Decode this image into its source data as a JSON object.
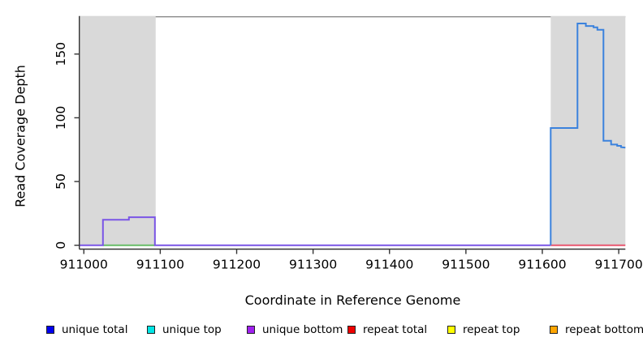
{
  "figure": {
    "xlabel": "Coordinate in Reference Genome",
    "ylabel": "Read Coverage Depth"
  },
  "chart_data": {
    "type": "line",
    "title": "",
    "xlabel": "Coordinate in Reference Genome",
    "ylabel": "Read Coverage Depth",
    "xlim": [
      910994.4,
      911708.7
    ],
    "ylim": [
      -3.05,
      179.25
    ],
    "x_ticks": [
      911000,
      911100,
      911200,
      911300,
      911400,
      911500,
      911600,
      911700
    ],
    "y_ticks": [
      0,
      50,
      100,
      150
    ],
    "grid": false,
    "legend_position": "bottom",
    "shaded_regions": [
      {
        "name": "shaded-region-left",
        "x1": 910994.4,
        "x2": 911094.0,
        "color": "#d9d9d9"
      },
      {
        "name": "shaded-region-right",
        "x1": 911611.0,
        "x2": 911708.7,
        "color": "#d9d9d9"
      }
    ],
    "top_border_color": "#8a8a8a",
    "axis_color": "#333333",
    "series": [
      {
        "name": "green baseline segment",
        "color": "#66bb66",
        "width": 2,
        "points": [
          [
            911025,
            0
          ],
          [
            911093,
            0
          ]
        ]
      },
      {
        "name": "unique bottom",
        "color": "#7a55e6",
        "width": 2,
        "points": [
          [
            910994.4,
            0
          ],
          [
            911025,
            0
          ],
          [
            911025,
            20
          ],
          [
            911059,
            20
          ],
          [
            911059,
            22
          ],
          [
            911093,
            22
          ],
          [
            911093,
            0
          ],
          [
            911611,
            0
          ]
        ]
      },
      {
        "name": "repeat total",
        "color": "#e8556e",
        "width": 2,
        "points": [
          [
            911611,
            0
          ],
          [
            911708.7,
            0
          ]
        ]
      },
      {
        "name": "unique total",
        "color": "#3b82dd",
        "width": 2,
        "points": [
          [
            911611,
            0
          ],
          [
            911611,
            92
          ],
          [
            911646,
            92
          ],
          [
            911646,
            174
          ],
          [
            911657,
            174
          ],
          [
            911657,
            172
          ],
          [
            911667,
            172
          ],
          [
            911667,
            171
          ],
          [
            911672,
            171
          ],
          [
            911672,
            169
          ],
          [
            911680,
            169
          ],
          [
            911680,
            82
          ],
          [
            911690,
            82
          ],
          [
            911690,
            79
          ],
          [
            911698,
            79
          ],
          [
            911698,
            78
          ],
          [
            911703,
            78
          ],
          [
            911703,
            77
          ],
          [
            911708.7,
            76.5
          ]
        ]
      }
    ]
  },
  "legend": {
    "items": [
      {
        "label": "unique total",
        "color": "#0000EE"
      },
      {
        "label": "unique top",
        "color": "#00E5E5"
      },
      {
        "label": "unique bottom",
        "color": "#A020F0"
      },
      {
        "label": "repeat total",
        "color": "#EE0000"
      },
      {
        "label": "repeat top",
        "color": "#FFFF00"
      },
      {
        "label": "repeat bottom",
        "color": "#FFA500"
      }
    ]
  }
}
